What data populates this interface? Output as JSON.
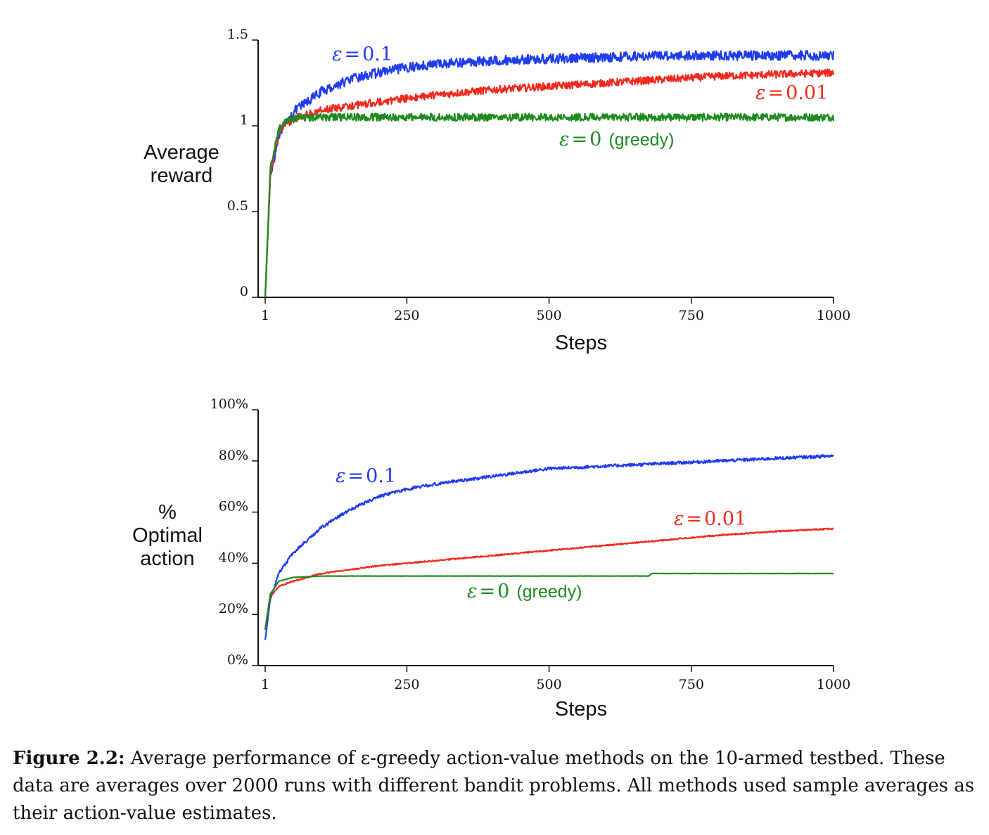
{
  "chart_data": [
    {
      "type": "line",
      "ylabel_lines": [
        "Average",
        "reward"
      ],
      "xlabel": "Steps",
      "xlim": [
        1,
        1000
      ],
      "ylim": [
        0,
        1.5
      ],
      "x_ticks": [
        "1",
        "250",
        "500",
        "750",
        "1000"
      ],
      "y_ticks": [
        "0",
        "0.5",
        "1",
        "1.5"
      ],
      "series": [
        {
          "name": "ε = 0.1",
          "label_eps": "ε",
          "label_eq": "=",
          "label_val": "0.1",
          "label_suffix": "",
          "color": "#1f3cf0",
          "anchors": [
            [
              1,
              0.0
            ],
            [
              10,
              0.7
            ],
            [
              25,
              0.95
            ],
            [
              50,
              1.08
            ],
            [
              100,
              1.2
            ],
            [
              150,
              1.27
            ],
            [
              200,
              1.31
            ],
            [
              250,
              1.34
            ],
            [
              300,
              1.36
            ],
            [
              400,
              1.38
            ],
            [
              500,
              1.39
            ],
            [
              600,
              1.4
            ],
            [
              700,
              1.41
            ],
            [
              800,
              1.41
            ],
            [
              900,
              1.41
            ],
            [
              1000,
              1.41
            ]
          ],
          "noise": 0.028
        },
        {
          "name": "ε = 0.01",
          "label_eps": "ε",
          "label_eq": "=",
          "label_val": "0.01",
          "label_suffix": "",
          "color": "#f02a1e",
          "anchors": [
            [
              1,
              0.0
            ],
            [
              10,
              0.72
            ],
            [
              25,
              0.97
            ],
            [
              50,
              1.04
            ],
            [
              100,
              1.09
            ],
            [
              200,
              1.14
            ],
            [
              300,
              1.18
            ],
            [
              400,
              1.21
            ],
            [
              500,
              1.23
            ],
            [
              600,
              1.25
            ],
            [
              700,
              1.27
            ],
            [
              800,
              1.29
            ],
            [
              900,
              1.3
            ],
            [
              1000,
              1.31
            ]
          ],
          "noise": 0.022
        },
        {
          "name": "ε = 0 (greedy)",
          "label_eps": "ε",
          "label_eq": "=",
          "label_val": "0",
          "label_suffix": "(greedy)",
          "color": "#1e8a1e",
          "anchors": [
            [
              1,
              0.0
            ],
            [
              10,
              0.75
            ],
            [
              25,
              0.98
            ],
            [
              40,
              1.03
            ],
            [
              60,
              1.05
            ],
            [
              100,
              1.05
            ],
            [
              1000,
              1.05
            ]
          ],
          "noise": 0.022
        }
      ]
    },
    {
      "type": "line",
      "ylabel_lines": [
        "%",
        "Optimal",
        "action"
      ],
      "xlabel": "Steps",
      "xlim": [
        1,
        1000
      ],
      "ylim": [
        0,
        100
      ],
      "x_ticks": [
        "1",
        "250",
        "500",
        "750",
        "1000"
      ],
      "y_ticks": [
        "0%",
        "20%",
        "40%",
        "60%",
        "80%",
        "100%"
      ],
      "series": [
        {
          "name": "ε = 0.1",
          "label_eps": "ε",
          "label_eq": "=",
          "label_val": "0.1",
          "label_suffix": "",
          "color": "#1f3cf0",
          "anchors": [
            [
              1,
              10
            ],
            [
              10,
              26
            ],
            [
              25,
              36
            ],
            [
              50,
              44
            ],
            [
              100,
              54
            ],
            [
              150,
              61
            ],
            [
              200,
              66
            ],
            [
              250,
              69
            ],
            [
              300,
              71
            ],
            [
              400,
              74
            ],
            [
              500,
              77
            ],
            [
              600,
              78
            ],
            [
              700,
              79
            ],
            [
              800,
              80
            ],
            [
              900,
              81
            ],
            [
              1000,
              82
            ]
          ],
          "noise": 0.6
        },
        {
          "name": "ε = 0.01",
          "label_eps": "ε",
          "label_eq": "=",
          "label_val": "0.01",
          "label_suffix": "",
          "color": "#f02a1e",
          "anchors": [
            [
              1,
              14
            ],
            [
              10,
              27
            ],
            [
              25,
              31
            ],
            [
              50,
              33
            ],
            [
              100,
              36
            ],
            [
              200,
              39
            ],
            [
              300,
              41
            ],
            [
              400,
              43
            ],
            [
              500,
              45
            ],
            [
              600,
              47
            ],
            [
              700,
              49
            ],
            [
              800,
              51
            ],
            [
              900,
              52.5
            ],
            [
              1000,
              53.5
            ]
          ],
          "noise": 0.25
        },
        {
          "name": "ε = 0 (greedy)",
          "label_eps": "ε",
          "label_eq": "=",
          "label_val": "0",
          "label_suffix": "(greedy)",
          "color": "#1e8a1e",
          "anchors": [
            [
              1,
              14
            ],
            [
              10,
              28
            ],
            [
              25,
              33
            ],
            [
              50,
              34.5
            ],
            [
              100,
              35
            ],
            [
              675,
              35
            ],
            [
              680,
              36
            ],
            [
              1000,
              36
            ]
          ],
          "noise": 0.05
        }
      ]
    }
  ],
  "caption": {
    "label": "Figure 2.2:",
    "text": "Average performance of ε-greedy action-value methods on the 10-armed testbed. These data are averages over 2000 runs with different bandit problems. All methods used sample averages as their action-value estimates."
  }
}
